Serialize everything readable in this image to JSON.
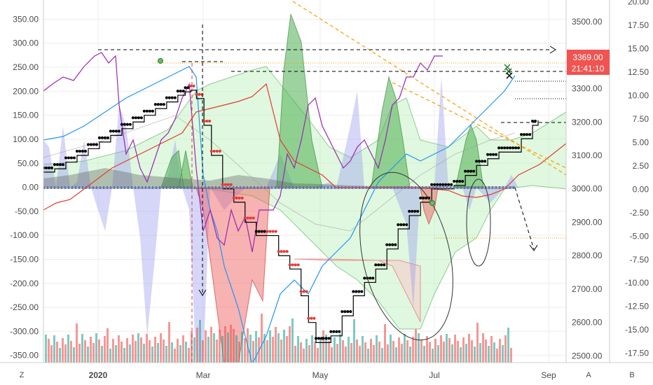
{
  "chart_data": {
    "type": "line",
    "xlabels": [
      "2020",
      "Mar",
      "May",
      "Jul",
      "Sep"
    ],
    "left_axis": {
      "ticks": [
        "350.00",
        "300.00",
        "250.00",
        "200.00",
        "150.00",
        "100.00",
        "50.00",
        "0.00",
        "-50.00",
        "-100.00",
        "-150.00",
        "-200.00",
        "-250.00",
        "-300.00",
        "-350.00"
      ],
      "ylim": [
        -365,
        390
      ]
    },
    "right_price_axis": {
      "ticks": [
        "3500.00",
        "3400.00",
        "3300.00",
        "3200.00",
        "3100.00",
        "3000.00",
        "2900.00",
        "2800.00",
        "2700.00",
        "2600.00",
        "2500.00"
      ],
      "ylim": [
        2480,
        3565
      ]
    },
    "right_oscillator_axis": {
      "ticks": [
        "20.00",
        "17.50",
        "15.00",
        "12.50",
        "10.00",
        "7.50",
        "5.00",
        "2.50",
        "0.00",
        "-2.50",
        "-5.00",
        "-7.50",
        "-10.00",
        "-12.50",
        "-15.00",
        "-17.50"
      ],
      "ylim": [
        -18.5,
        20.2
      ]
    },
    "price_tag": {
      "value": "3369.00",
      "countdown": "21:41:10",
      "color": "#f05350"
    },
    "corner_buttons": {
      "left": "Z",
      "right_a": "A",
      "right_b": "B"
    },
    "grid": true,
    "price_series": {
      "name": "",
      "points": [
        [
          0,
          3050
        ],
        [
          6,
          3060
        ],
        [
          12,
          3080
        ],
        [
          18,
          3100
        ],
        [
          24,
          3120
        ],
        [
          30,
          3140
        ],
        [
          36,
          3160
        ],
        [
          42,
          3180
        ],
        [
          48,
          3200
        ],
        [
          54,
          3220
        ],
        [
          60,
          3240
        ],
        [
          66,
          3260
        ],
        [
          72,
          3280
        ],
        [
          76,
          3290
        ],
        [
          79,
          3295
        ],
        [
          82,
          3270
        ],
        [
          86,
          3190
        ],
        [
          90,
          3100
        ],
        [
          96,
          3000
        ],
        [
          102,
          2960
        ],
        [
          108,
          2900
        ],
        [
          114,
          2860
        ],
        [
          120,
          2860
        ],
        [
          126,
          2800
        ],
        [
          132,
          2760
        ],
        [
          138,
          2680
        ],
        [
          142,
          2600
        ],
        [
          146,
          2540
        ],
        [
          150,
          2540
        ],
        [
          154,
          2560
        ],
        [
          160,
          2620
        ],
        [
          166,
          2680
        ],
        [
          172,
          2720
        ],
        [
          178,
          2760
        ],
        [
          184,
          2820
        ],
        [
          190,
          2880
        ],
        [
          196,
          2920
        ],
        [
          202,
          2960
        ],
        [
          208,
          3000
        ],
        [
          214,
          3000
        ],
        [
          220,
          3010
        ],
        [
          226,
          3040
        ],
        [
          232,
          3070
        ],
        [
          238,
          3090
        ],
        [
          244,
          3110
        ],
        [
          250,
          3110
        ],
        [
          256,
          3150
        ],
        [
          262,
          3190
        ],
        [
          265,
          3205
        ]
      ]
    },
    "colors": {
      "up": "#26a69a",
      "down": "#ef5350",
      "price_line": "#000000",
      "blue_line": "#2196f3",
      "purple_line": "#9c27b0",
      "red_line": "#e53935",
      "trend_orange": "#ff9800"
    }
  }
}
